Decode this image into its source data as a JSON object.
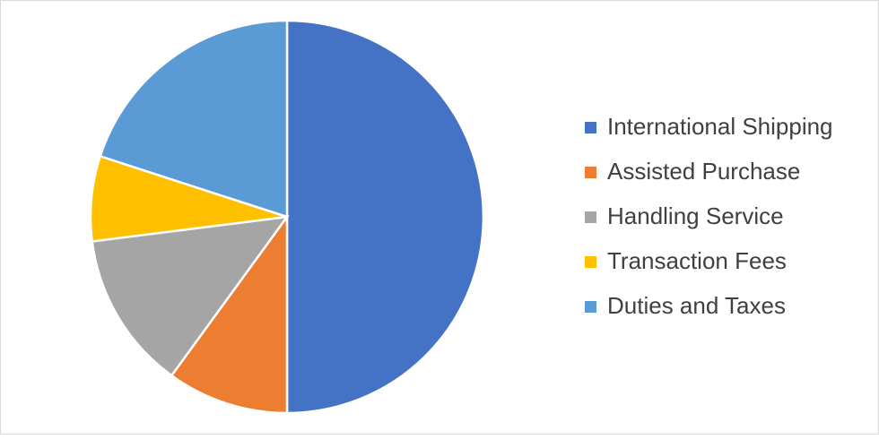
{
  "chart_data": {
    "type": "pie",
    "categories": [
      "International Shipping",
      "Assisted Purchase",
      "Handling Service",
      "Transaction Fees",
      "Duties and Taxes"
    ],
    "values": [
      50,
      10,
      13,
      7,
      20
    ],
    "colors": [
      "#4472c4",
      "#ed7d31",
      "#a5a5a5",
      "#ffc000",
      "#5b9bd5"
    ],
    "legend": "right"
  }
}
